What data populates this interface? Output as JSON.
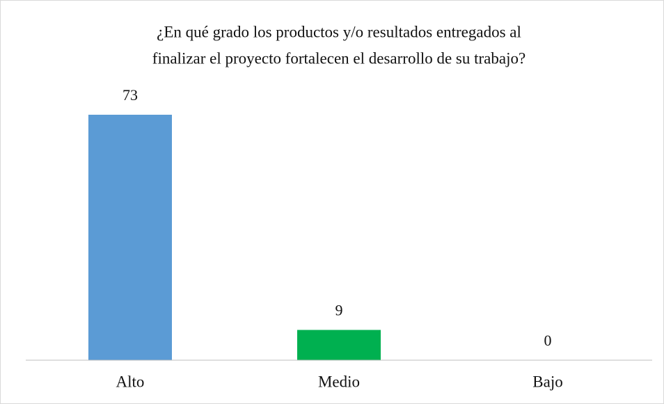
{
  "chart_data": {
    "type": "bar",
    "title": [
      "¿En qué grado los productos y/o resultados entregados al",
      "finalizar  el proyecto fortalecen el desarrollo  de su trabajo?"
    ],
    "categories": [
      "Alto",
      "Medio",
      "Bajo"
    ],
    "values": [
      73,
      9,
      0
    ],
    "colors": [
      "#5b9bd5",
      "#00b050",
      "#a5a5a5"
    ]
  }
}
